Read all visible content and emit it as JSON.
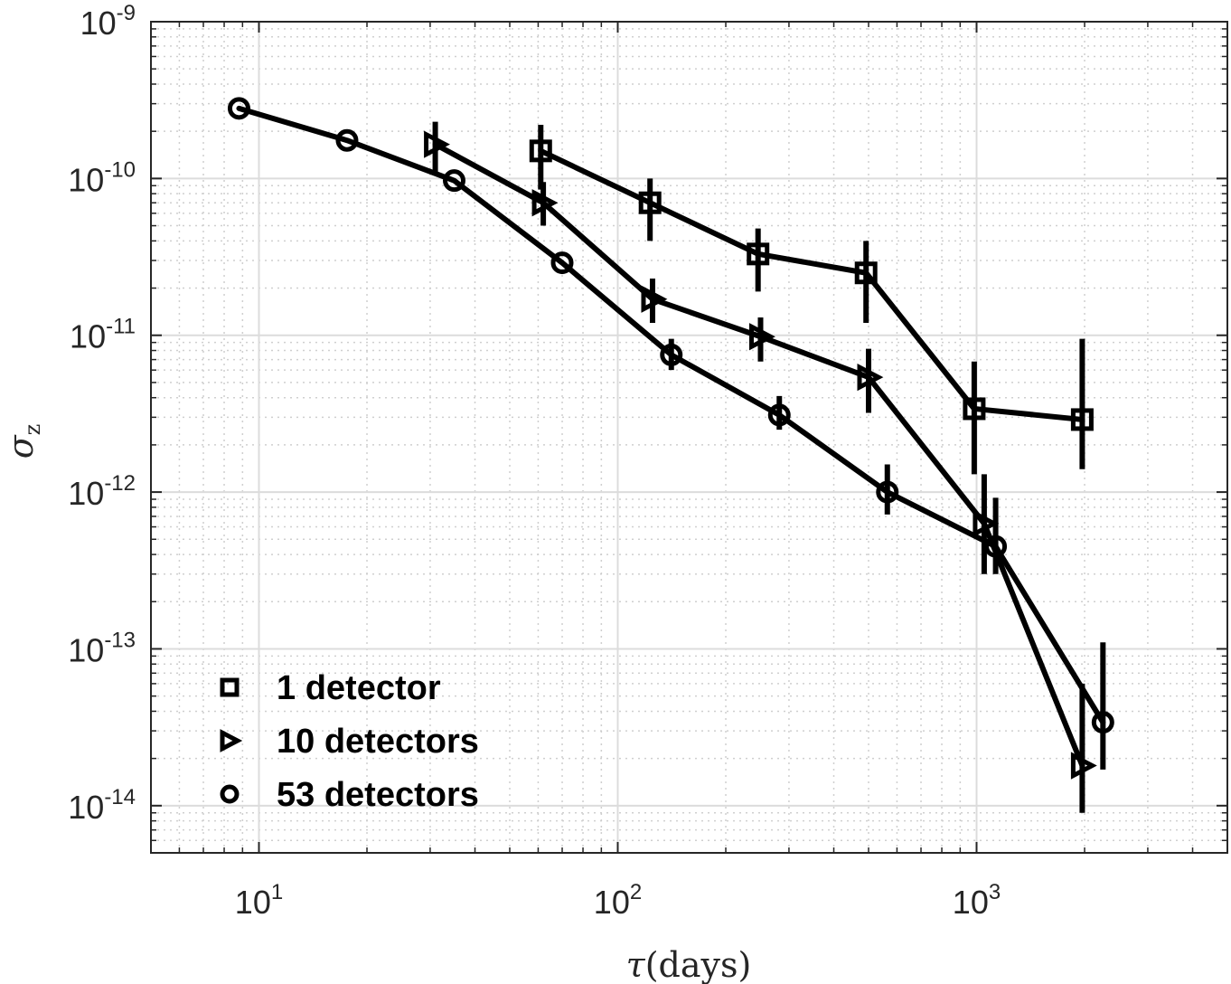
{
  "chart_data": {
    "type": "line",
    "title": "",
    "xlabel": {
      "symbol": "τ",
      "unit": "(days)"
    },
    "ylabel": {
      "symbol": "σ",
      "subscript": "z"
    },
    "xscale": "log",
    "yscale": "log",
    "xlim": [
      5,
      5000
    ],
    "ylim": [
      5e-15,
      1e-09
    ],
    "grid": true,
    "minor_grid": true,
    "x_ticks": [
      {
        "value": 10,
        "base": "10",
        "exp": "1"
      },
      {
        "value": 100,
        "base": "10",
        "exp": "2"
      },
      {
        "value": 1000,
        "base": "10",
        "exp": "3"
      }
    ],
    "y_ticks": [
      {
        "value": 1e-09,
        "base": "10",
        "exp": "-9"
      },
      {
        "value": 1e-10,
        "base": "10",
        "exp": "-10"
      },
      {
        "value": 1e-11,
        "base": "10",
        "exp": "-11"
      },
      {
        "value": 1e-12,
        "base": "10",
        "exp": "-12"
      },
      {
        "value": 1e-13,
        "base": "10",
        "exp": "-13"
      },
      {
        "value": 1e-14,
        "base": "10",
        "exp": "-14"
      }
    ],
    "legend_position": "bottom-left",
    "series": [
      {
        "name": "1 detector",
        "marker": "square",
        "x": [
          61,
          123,
          246,
          492,
          985,
          1970
        ],
        "y": [
          1.5e-10,
          7e-11,
          3.3e-11,
          2.5e-11,
          3.4e-12,
          2.9e-12
        ],
        "err_low": [
          8.5e-11,
          4e-11,
          1.9e-11,
          1.2e-11,
          1.3e-12,
          1.4e-12
        ],
        "err_high": [
          2.2e-10,
          1e-10,
          4.8e-11,
          4e-11,
          6.8e-12,
          9.5e-12
        ]
      },
      {
        "name": "10 detectors",
        "marker": "triangle-right",
        "x": [
          31,
          62,
          125,
          250,
          500,
          1050,
          1970
        ],
        "y": [
          1.65e-10,
          7e-11,
          1.7e-11,
          9.8e-12,
          5.4e-12,
          6.3e-13,
          1.8e-14
        ],
        "err_low": [
          1.1e-10,
          5e-11,
          1.2e-11,
          6.8e-12,
          3.2e-12,
          3e-13,
          9e-15
        ],
        "err_high": [
          2.3e-10,
          9.5e-11,
          2.3e-11,
          1.3e-11,
          8.2e-12,
          1.3e-12,
          6e-14
        ]
      },
      {
        "name": "53 detectors",
        "marker": "circle",
        "x": [
          8.8,
          17.6,
          35,
          70,
          141,
          282,
          564,
          1130,
          2250
        ],
        "y": [
          2.8e-10,
          1.75e-10,
          9.7e-11,
          2.9e-11,
          7.5e-12,
          3.1e-12,
          1e-12,
          4.5e-13,
          3.4e-14
        ],
        "err_low": [
          null,
          null,
          null,
          null,
          6e-12,
          2.5e-12,
          7.2e-13,
          3e-13,
          1.7e-14
        ],
        "err_high": [
          null,
          null,
          null,
          null,
          9.5e-12,
          4.1e-12,
          1.5e-12,
          9.2e-13,
          1.1e-13
        ]
      }
    ]
  }
}
